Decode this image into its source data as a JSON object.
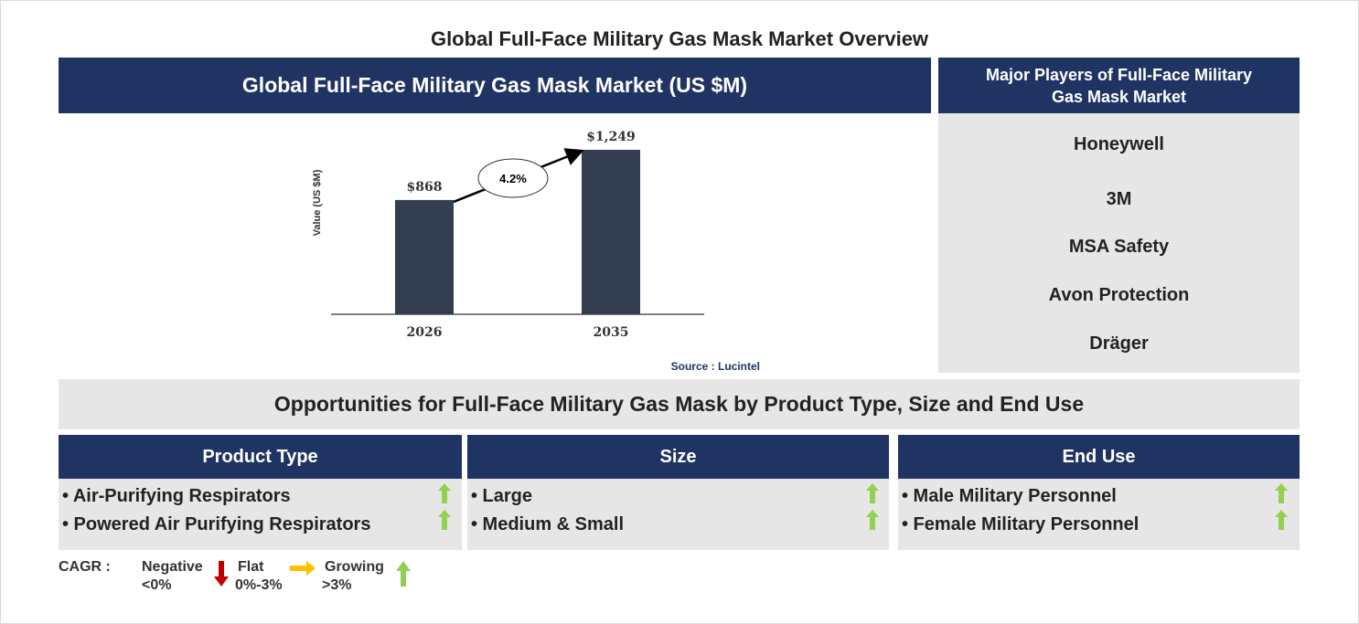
{
  "page_title": "Global Full-Face Military Gas Mask Market Overview",
  "chart_header": "Global Full-Face Military Gas Mask Market (US $M)",
  "chart_data": {
    "type": "bar",
    "categories": [
      "2026",
      "2035"
    ],
    "values": [
      868,
      1249
    ],
    "value_labels": [
      "$868",
      "$1,249"
    ],
    "ylabel": "Value (US $M)",
    "cagr_label": "4.2%",
    "source": "Source : Lucintel",
    "bar_color": "#333f50"
  },
  "players": {
    "header": "Major Players of Full-Face Military Gas Mask Market",
    "items": [
      "Honeywell",
      "3M",
      "MSA Safety",
      "Avon Protection",
      "Dräger"
    ]
  },
  "opportunities_title": "Opportunities for Full-Face Military Gas Mask by Product Type, Size and End Use",
  "categories": [
    {
      "title": "Product Type",
      "items": [
        "• Air-Purifying Respirators",
        "• Powered Air Purifying Respirators"
      ],
      "trend": [
        "growing",
        "growing"
      ]
    },
    {
      "title": "Size",
      "items": [
        "• Large",
        "• Medium & Small"
      ],
      "trend": [
        "growing",
        "growing"
      ]
    },
    {
      "title": "End Use",
      "items": [
        "• Male Military Personnel",
        "• Female Military Personnel"
      ],
      "trend": [
        "growing",
        "growing"
      ]
    }
  ],
  "legend": {
    "label": "CAGR :",
    "negative": {
      "name": "Negative",
      "range": "<0%",
      "color": "#c00000"
    },
    "flat": {
      "name": "Flat",
      "range": "0%-3%",
      "color": "#ffc000"
    },
    "growing": {
      "name": "Growing",
      "range": ">3%",
      "color": "#92d050"
    }
  },
  "colors": {
    "navy": "#1f3462",
    "panel_gray": "#e6e6e6"
  }
}
